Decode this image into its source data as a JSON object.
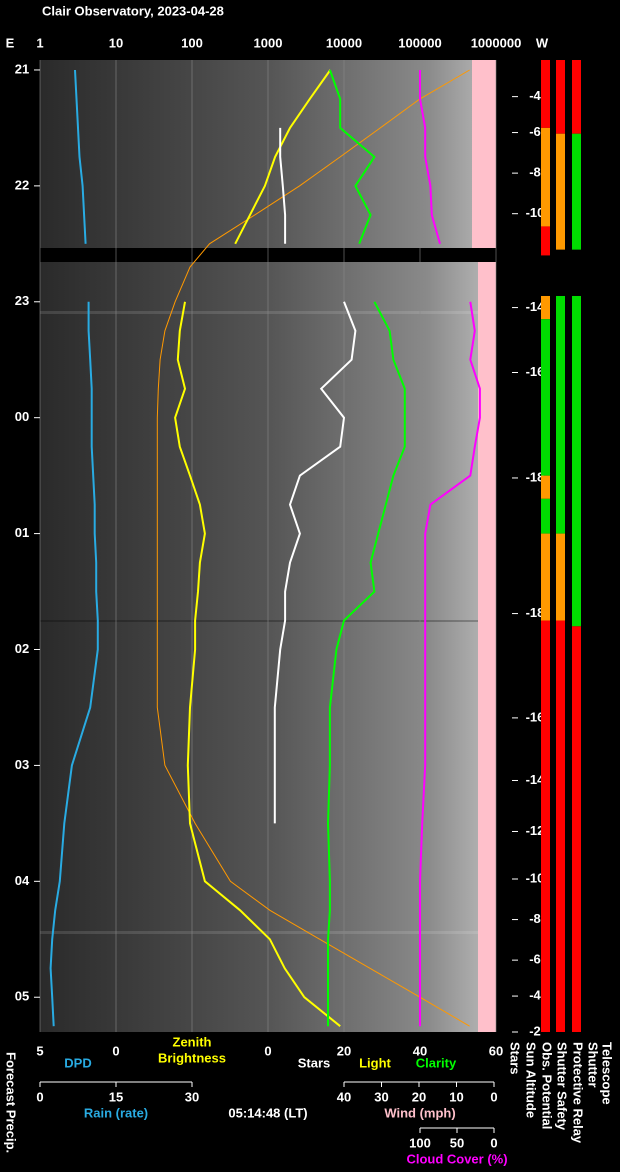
{
  "chart_data": {
    "type": "line",
    "title": "Clair Observatory, 2023-04-28",
    "east_label": "E",
    "west_label": "W",
    "xlim": [
      1,
      1000000
    ],
    "xlog": true,
    "xticks": [
      1,
      10,
      100,
      1000,
      10000,
      100000,
      1000000
    ],
    "ylim": [
      20.914,
      29.3
    ],
    "yticks": [
      21,
      22,
      23,
      {
        "value": 24,
        "label": "00"
      },
      {
        "value": 25,
        "label": "01"
      },
      {
        "value": 26,
        "label": "02"
      },
      {
        "value": 27,
        "label": "03"
      },
      {
        "value": 28,
        "label": "04"
      },
      {
        "value": 29,
        "label": "05"
      }
    ],
    "grid": true,
    "times": [
      21,
      21.25,
      21.5,
      21.75,
      22,
      22.25,
      22.5,
      22.7,
      23,
      23.25,
      23.5,
      23.75,
      24,
      24.25,
      24.5,
      24.75,
      25,
      25.25,
      25.5,
      25.75,
      26,
      26.5,
      27,
      27.5,
      28,
      28.25,
      28.5,
      28.75,
      29,
      29.25
    ],
    "series": [
      {
        "name": "DPD",
        "color": "#29abe2",
        "axis": "dpd",
        "values": [
          2.7,
          2.6,
          2.5,
          2.4,
          2.2,
          2.1,
          2.0,
          null,
          1.8,
          1.8,
          1.7,
          1.6,
          1.6,
          1.6,
          1.5,
          1.4,
          1.4,
          1.3,
          1.3,
          1.2,
          1.2,
          1.7,
          2.9,
          3.4,
          3.7,
          4.0,
          4.2,
          4.3,
          4.2,
          4.1
        ]
      },
      {
        "name": "Sun",
        "color": "#ff9900",
        "axis": "x",
        "values": [
          450000,
          100000,
          30000,
          8900,
          2600,
          670,
          170,
          94,
          60,
          44,
          38,
          36,
          35,
          35,
          35,
          35,
          35,
          35,
          35,
          35,
          35,
          35,
          44,
          110,
          320,
          1060,
          4800,
          22000,
          100000,
          450000
        ]
      },
      {
        "name": "Zenith Brightness",
        "color": "#ffff00",
        "axis": "x",
        "values": [
          6600,
          3550,
          1950,
          1240,
          910,
          580,
          370,
          null,
          81,
          69,
          65,
          81,
          60,
          69,
          94,
          127,
          148,
          127,
          120,
          110,
          110,
          94,
          88,
          94,
          148,
          430,
          1060,
          1660,
          3000,
          8900
        ]
      },
      {
        "name": "Stars",
        "color": "#ffffff",
        "axis": "x2",
        "values": [
          null,
          null,
          3.2,
          3.2,
          3.9,
          4.5,
          4.5,
          null,
          20,
          23,
          22,
          14,
          20,
          19,
          8.4,
          5.8,
          8.4,
          5.8,
          4.5,
          4.5,
          3.2,
          1.8,
          1.8,
          1.8,
          null,
          null,
          null,
          null,
          null,
          null
        ]
      },
      {
        "name": "Clarity",
        "color": "#00ff00",
        "axis": "x2",
        "values": [
          16.3,
          19,
          19,
          28,
          23,
          27,
          24,
          null,
          28,
          32,
          33,
          36,
          36,
          36,
          33,
          31,
          29,
          27,
          28,
          20,
          18,
          16.3,
          16.3,
          15.8,
          16.3,
          16.3,
          15.8,
          15.8,
          15.8,
          15.8
        ]
      },
      {
        "name": "Cloud Cover (%)",
        "color": "#ff00ff",
        "axis": "cloud",
        "values": [
          100,
          100,
          93,
          93,
          86,
          84,
          73,
          null,
          32,
          26,
          32,
          19,
          19,
          26,
          32,
          86,
          93,
          93,
          93,
          93,
          93,
          93,
          93,
          97,
          100,
          100,
          100,
          100,
          100,
          100
        ]
      }
    ],
    "sun_altitude": {
      "hours": [
        21.23,
        21.54,
        21.89,
        22.24,
        23.05,
        23.61,
        24.52,
        25.69,
        26.59,
        27.13,
        27.57,
        27.98,
        28.33,
        28.68,
        28.99,
        29.3
      ],
      "values": [
        -4,
        -6,
        -8,
        -10,
        -14,
        -16,
        -18,
        -18,
        -16,
        -14,
        -12,
        -10,
        -8,
        -6,
        -4,
        -2
      ]
    },
    "status_columns": [
      {
        "name": "Obs. Potential",
        "segments": [
          {
            "from": 20.914,
            "to": 21.5,
            "color": "#ff0000"
          },
          {
            "from": 21.5,
            "to": 22.35,
            "color": "#ff9900"
          },
          {
            "from": 22.35,
            "to": 22.6,
            "color": "#ff0000"
          },
          {
            "from": 22.95,
            "to": 23.15,
            "color": "#ff9900"
          },
          {
            "from": 23.15,
            "to": 24.5,
            "color": "#00dd00"
          },
          {
            "from": 24.5,
            "to": 24.7,
            "color": "#ff9900"
          },
          {
            "from": 24.7,
            "to": 25.0,
            "color": "#00dd00"
          },
          {
            "from": 25.0,
            "to": 25.75,
            "color": "#ff9900"
          },
          {
            "from": 25.75,
            "to": 29.3,
            "color": "#ff0000"
          }
        ]
      },
      {
        "name": "Shutter Safety",
        "segments": [
          {
            "from": 20.914,
            "to": 21.55,
            "color": "#ff0000"
          },
          {
            "from": 21.55,
            "to": 22.55,
            "color": "#ff9900"
          },
          {
            "from": 22.95,
            "to": 25.0,
            "color": "#00dd00"
          },
          {
            "from": 25.0,
            "to": 25.75,
            "color": "#ff9900"
          },
          {
            "from": 25.75,
            "to": 29.3,
            "color": "#ff0000"
          }
        ]
      },
      {
        "name": "Protective Relay",
        "segments": [
          {
            "from": 20.914,
            "to": 21.55,
            "color": "#ff0000"
          },
          {
            "from": 21.55,
            "to": 22.55,
            "color": "#00dd00"
          },
          {
            "from": 22.95,
            "to": 25.8,
            "color": "#00dd00"
          },
          {
            "from": 25.8,
            "to": 29.3,
            "color": "#ff0000"
          }
        ]
      }
    ],
    "side_labels": {
      "left": "Forecast Precip.",
      "stars": "Stars",
      "sun": "Sun Altitude",
      "telescope": [
        "Telescope",
        "Shutter"
      ]
    },
    "scales": {
      "dpd": {
        "lim": [
          5,
          0
        ],
        "ticks": [
          5,
          0
        ],
        "label": "DPD",
        "color": "#29abe2"
      },
      "zenith": {
        "label_lines": [
          "Zenith",
          "Brightness"
        ],
        "color": "#ffff00"
      },
      "x2": {
        "lim": [
          0,
          60
        ],
        "ticks": [
          0,
          20,
          40,
          60
        ],
        "labels": [
          {
            "text": "Stars",
            "color": "#ffffff"
          },
          {
            "text": "Light",
            "color": "#ffff00"
          },
          {
            "text": "Clarity",
            "color": "#00ff00"
          }
        ]
      },
      "rain": {
        "lim": [
          0,
          30
        ],
        "ticks": [
          0,
          15,
          30
        ],
        "label": "Rain (rate)",
        "color": "#29abe2"
      },
      "wind": {
        "lim": [
          40,
          0
        ],
        "ticks": [
          40,
          30,
          20,
          10,
          0
        ],
        "label": "Wind (mph)",
        "color": "#ffc0cb"
      },
      "cloud": {
        "lim": [
          100,
          0
        ],
        "ticks": [
          100,
          50,
          0
        ],
        "label": "Cloud Cover (%)",
        "color": "#ff00ff"
      }
    },
    "time_label": "05:14:48 (LT)"
  }
}
